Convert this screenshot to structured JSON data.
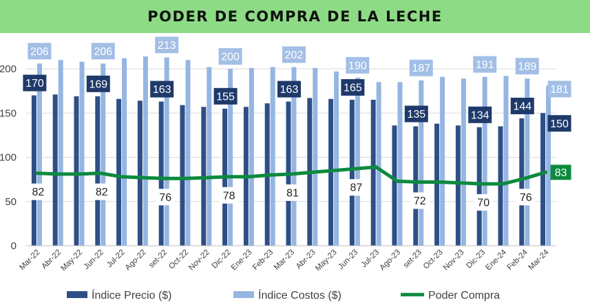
{
  "chart_data": {
    "type": "bar",
    "title": "PODER DE COMPRA DE LA LECHE",
    "categories": [
      "Mar-22",
      "Abr-22",
      "May-22",
      "Jun-22",
      "Jul-22",
      "Ago-22",
      "set-22",
      "Oct-22",
      "Nov-22",
      "Dic-22",
      "Ene-23",
      "Feb-23",
      "Mar-23",
      "Abr-23",
      "May-23",
      "Jun-23",
      "Jul-23",
      "Ago-23",
      "set-23",
      "Oct-23",
      "Nov-23",
      "Dic-23",
      "Ene-24",
      "Feb-24",
      "Mar-24"
    ],
    "ylim": [
      0,
      220
    ],
    "yticks": [
      0,
      50,
      100,
      150,
      200
    ],
    "grid": true,
    "legend_position": "bottom",
    "series": [
      {
        "name": "Índice Precio ($)",
        "type": "bar",
        "color": "#2e4f86",
        "values": [
          170,
          171,
          169,
          169,
          166,
          164,
          163,
          159,
          157,
          155,
          157,
          161,
          163,
          167,
          166,
          165,
          165,
          136,
          135,
          138,
          136,
          134,
          135,
          144,
          150
        ],
        "labels": [
          {
            "i": 0,
            "text": "170"
          },
          {
            "i": 3,
            "text": "169"
          },
          {
            "i": 6,
            "text": "163"
          },
          {
            "i": 9,
            "text": "155"
          },
          {
            "i": 12,
            "text": "163"
          },
          {
            "i": 15,
            "text": "165"
          },
          {
            "i": 18,
            "text": "135"
          },
          {
            "i": 21,
            "text": "134"
          },
          {
            "i": 23,
            "text": "144"
          },
          {
            "i": 24,
            "text": "150"
          }
        ]
      },
      {
        "name": "Índice Costos ($)",
        "type": "bar",
        "color": "#95b6e2",
        "values": [
          206,
          210,
          208,
          206,
          212,
          214,
          213,
          210,
          202,
          200,
          201,
          202,
          202,
          201,
          197,
          190,
          185,
          185,
          187,
          191,
          189,
          191,
          192,
          189,
          181
        ],
        "labels": [
          {
            "i": 0,
            "text": "206"
          },
          {
            "i": 3,
            "text": "206"
          },
          {
            "i": 6,
            "text": "213"
          },
          {
            "i": 9,
            "text": "200"
          },
          {
            "i": 12,
            "text": "202"
          },
          {
            "i": 15,
            "text": "190"
          },
          {
            "i": 18,
            "text": "187"
          },
          {
            "i": 21,
            "text": "191"
          },
          {
            "i": 23,
            "text": "189"
          },
          {
            "i": 24,
            "text": "181"
          }
        ]
      },
      {
        "name": "Poder Compra",
        "type": "line",
        "color": "#0c8a3e",
        "values": [
          82,
          81,
          81,
          82,
          78,
          77,
          76,
          76,
          77,
          78,
          78,
          80,
          81,
          83,
          85,
          87,
          89,
          73,
          72,
          72,
          71,
          70,
          70,
          76,
          83
        ],
        "labels": [
          {
            "i": 0,
            "text": "82"
          },
          {
            "i": 3,
            "text": "82"
          },
          {
            "i": 6,
            "text": "76"
          },
          {
            "i": 9,
            "text": "78"
          },
          {
            "i": 12,
            "text": "81"
          },
          {
            "i": 15,
            "text": "87"
          },
          {
            "i": 18,
            "text": "72"
          },
          {
            "i": 21,
            "text": "70"
          },
          {
            "i": 23,
            "text": "76"
          },
          {
            "i": 24,
            "text": "83"
          }
        ]
      }
    ]
  }
}
